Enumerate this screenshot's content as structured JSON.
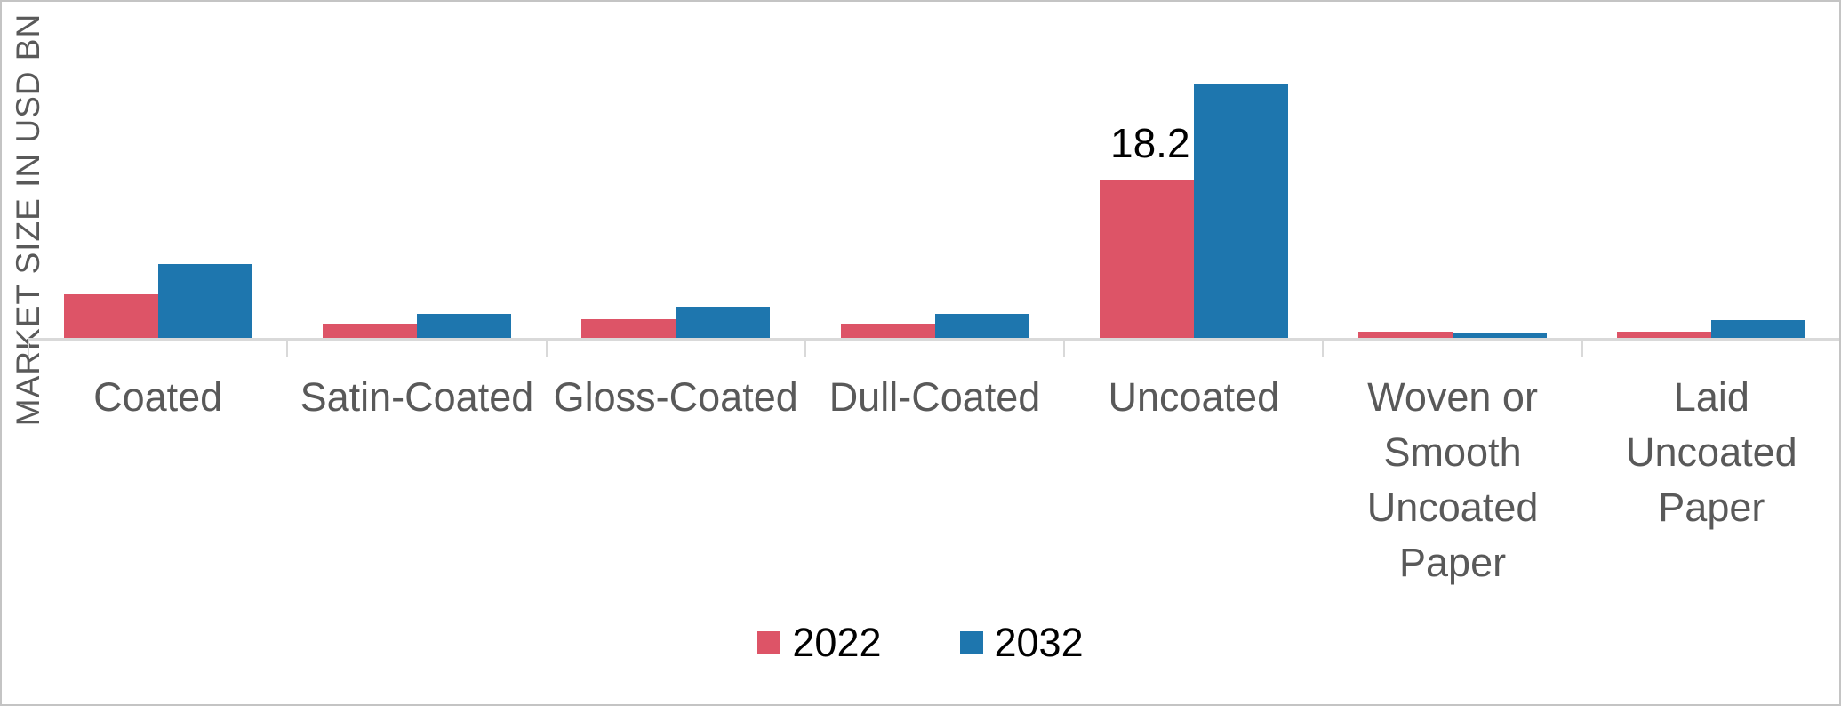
{
  "chart_data": {
    "type": "bar",
    "title": "",
    "ylabel": "MARKET SIZE IN USD BN",
    "xlabel": "",
    "categories": [
      "Coated",
      "Satin-Coated",
      "Gloss-Coated",
      "Dull-Coated",
      "Uncoated",
      "Woven or Smooth Uncoated Paper",
      "Laid Uncoated Paper"
    ],
    "category_label_lines": [
      [
        "Coated"
      ],
      [
        "Satin-Coated"
      ],
      [
        "Gloss-Coated"
      ],
      [
        "Dull-Coated"
      ],
      [
        "Uncoated"
      ],
      [
        "Woven or",
        "Smooth",
        "Uncoated",
        "Paper"
      ],
      [
        "Laid",
        "Uncoated",
        "Paper"
      ]
    ],
    "series": [
      {
        "name": "2022",
        "color": "#dd5467",
        "values": [
          5.0,
          1.6,
          2.1,
          1.6,
          18.2,
          0.7,
          0.7
        ]
      },
      {
        "name": "2032",
        "color": "#1e76ae",
        "values": [
          8.5,
          2.8,
          3.6,
          2.8,
          29.2,
          0.5,
          2.0
        ]
      }
    ],
    "data_labels": [
      {
        "series": "2022",
        "category": "Uncoated",
        "text": "18.2"
      }
    ],
    "ylim": [
      0,
      38
    ],
    "grid": false,
    "legend_position": "bottom",
    "legend_labels": [
      "2022",
      "2032"
    ],
    "axis_color": "#d9d9d9",
    "tick_text_color": "#595959",
    "value_label_color": "#000000"
  }
}
